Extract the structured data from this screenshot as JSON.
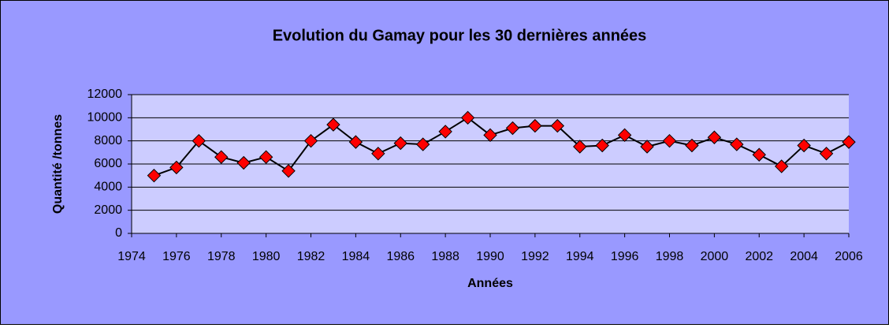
{
  "chart_data": {
    "type": "line",
    "title": "Evolution du Gamay pour les 30 dernières années",
    "xlabel": "Années",
    "ylabel": "Quantité /tonnes",
    "x": [
      1975,
      1976,
      1977,
      1978,
      1979,
      1980,
      1981,
      1982,
      1983,
      1984,
      1985,
      1986,
      1987,
      1988,
      1989,
      1990,
      1991,
      1992,
      1993,
      1994,
      1995,
      1996,
      1997,
      1998,
      1999,
      2000,
      2001,
      2002,
      2003,
      2004,
      2005,
      2006
    ],
    "series": [
      {
        "name": "Gamay",
        "color": "#ff0000",
        "line_color": "#000000",
        "values": [
          5000,
          5700,
          8000,
          6600,
          6100,
          6600,
          5400,
          8000,
          9400,
          7900,
          6900,
          7800,
          7700,
          8800,
          10000,
          8500,
          9100,
          9300,
          9300,
          7500,
          7600,
          8500,
          7500,
          8000,
          7600,
          8300,
          7700,
          6800,
          5800,
          7600,
          6900,
          7900
        ]
      }
    ],
    "xlim": [
      1974,
      2006
    ],
    "xticks": [
      1974,
      1976,
      1978,
      1980,
      1982,
      1984,
      1986,
      1988,
      1990,
      1992,
      1994,
      1996,
      1998,
      2000,
      2002,
      2004,
      2006
    ],
    "ylim": [
      0,
      12000
    ],
    "yticks": [
      0,
      2000,
      4000,
      6000,
      8000,
      10000,
      12000
    ],
    "grid": true,
    "legend": false
  }
}
